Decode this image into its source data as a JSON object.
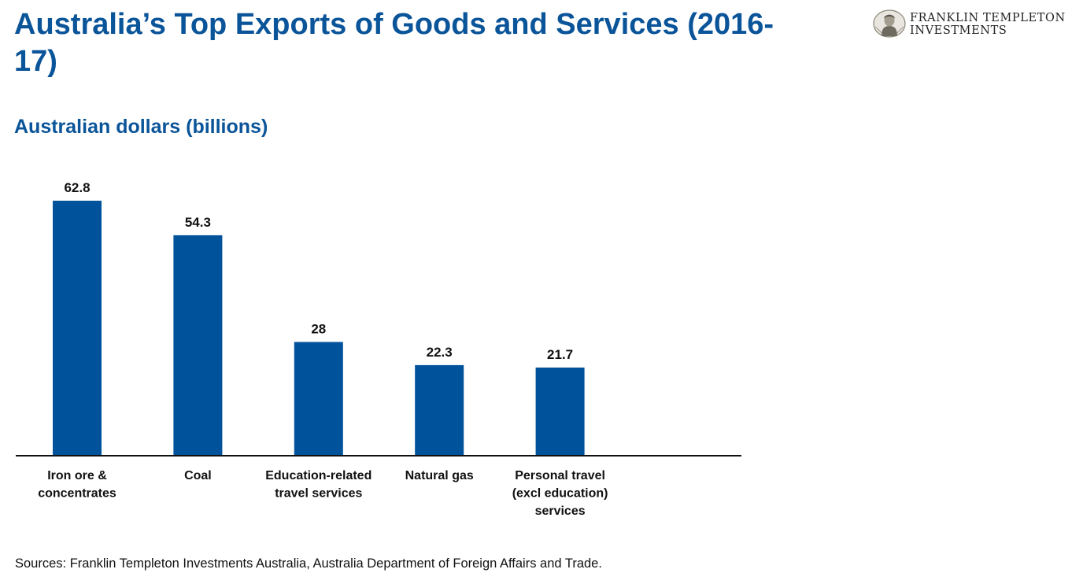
{
  "header": {
    "title": "Australia’s Top Exports of Goods and Services (2016-17)",
    "logo_line1": "FRANKLIN TEMPLETON",
    "logo_line2": "INVESTMENTS"
  },
  "chart_data": {
    "type": "bar",
    "title": "Australia’s Top Exports of Goods and Services (2016-17)",
    "subtitle": "Australian dollars (billions)",
    "categories": [
      [
        "Iron ore &",
        "concentrates"
      ],
      [
        "Coal"
      ],
      [
        "Education-related",
        "travel services"
      ],
      [
        "Natural gas"
      ],
      [
        "Personal travel",
        "(excl education)",
        "services"
      ]
    ],
    "values": [
      62.8,
      54.3,
      28,
      22.3,
      21.7
    ],
    "value_labels": [
      "62.8",
      "54.3",
      "28",
      "22.3",
      "21.7"
    ],
    "bar_color": "#00529b",
    "xlabel": "",
    "ylabel": "",
    "ylim": [
      0,
      62.8
    ],
    "grid": false,
    "legend": "none"
  },
  "footer": {
    "source": "Sources: Franklin Templeton Investments Australia, Australia Department of Foreign Affairs and Trade."
  }
}
